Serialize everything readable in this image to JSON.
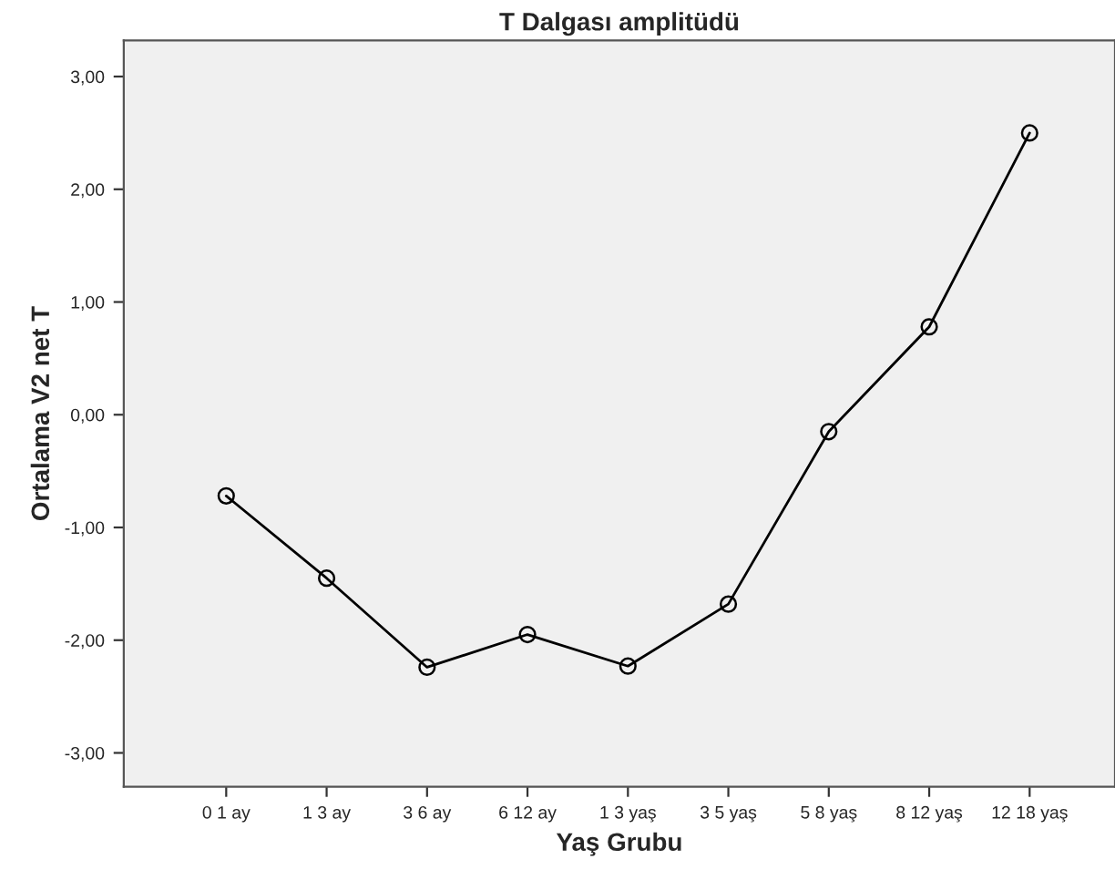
{
  "chart_data": {
    "type": "line",
    "title": "T Dalgası amplitüdü",
    "xlabel": "Yaş Grubu",
    "ylabel": "Ortalama V2 net T",
    "categories": [
      "0 1 ay",
      "1 3 ay",
      "3 6 ay",
      "6 12 ay",
      "1 3 yaş",
      "3 5 yaş",
      "5 8 yaş",
      "8 12 yaş",
      "12 18 yaş"
    ],
    "series": [
      {
        "color": "#000000",
        "values": [
          -0.72,
          -1.45,
          -2.24,
          -1.95,
          -2.23,
          -1.68,
          -0.15,
          0.78,
          2.5
        ]
      }
    ],
    "ylim": [
      -3.3,
      3.32
    ],
    "yticks": [
      {
        "value": -3,
        "label": "-3,00"
      },
      {
        "value": -2,
        "label": "-2,00"
      },
      {
        "value": -1,
        "label": "-1,00"
      },
      {
        "value": 0,
        "label": "0,00"
      },
      {
        "value": 1,
        "label": "1,00"
      },
      {
        "value": 2,
        "label": "2,00"
      },
      {
        "value": 3,
        "label": "3,00"
      }
    ],
    "marker": "circle",
    "line_style": "solid",
    "grid": false,
    "legend": false
  }
}
